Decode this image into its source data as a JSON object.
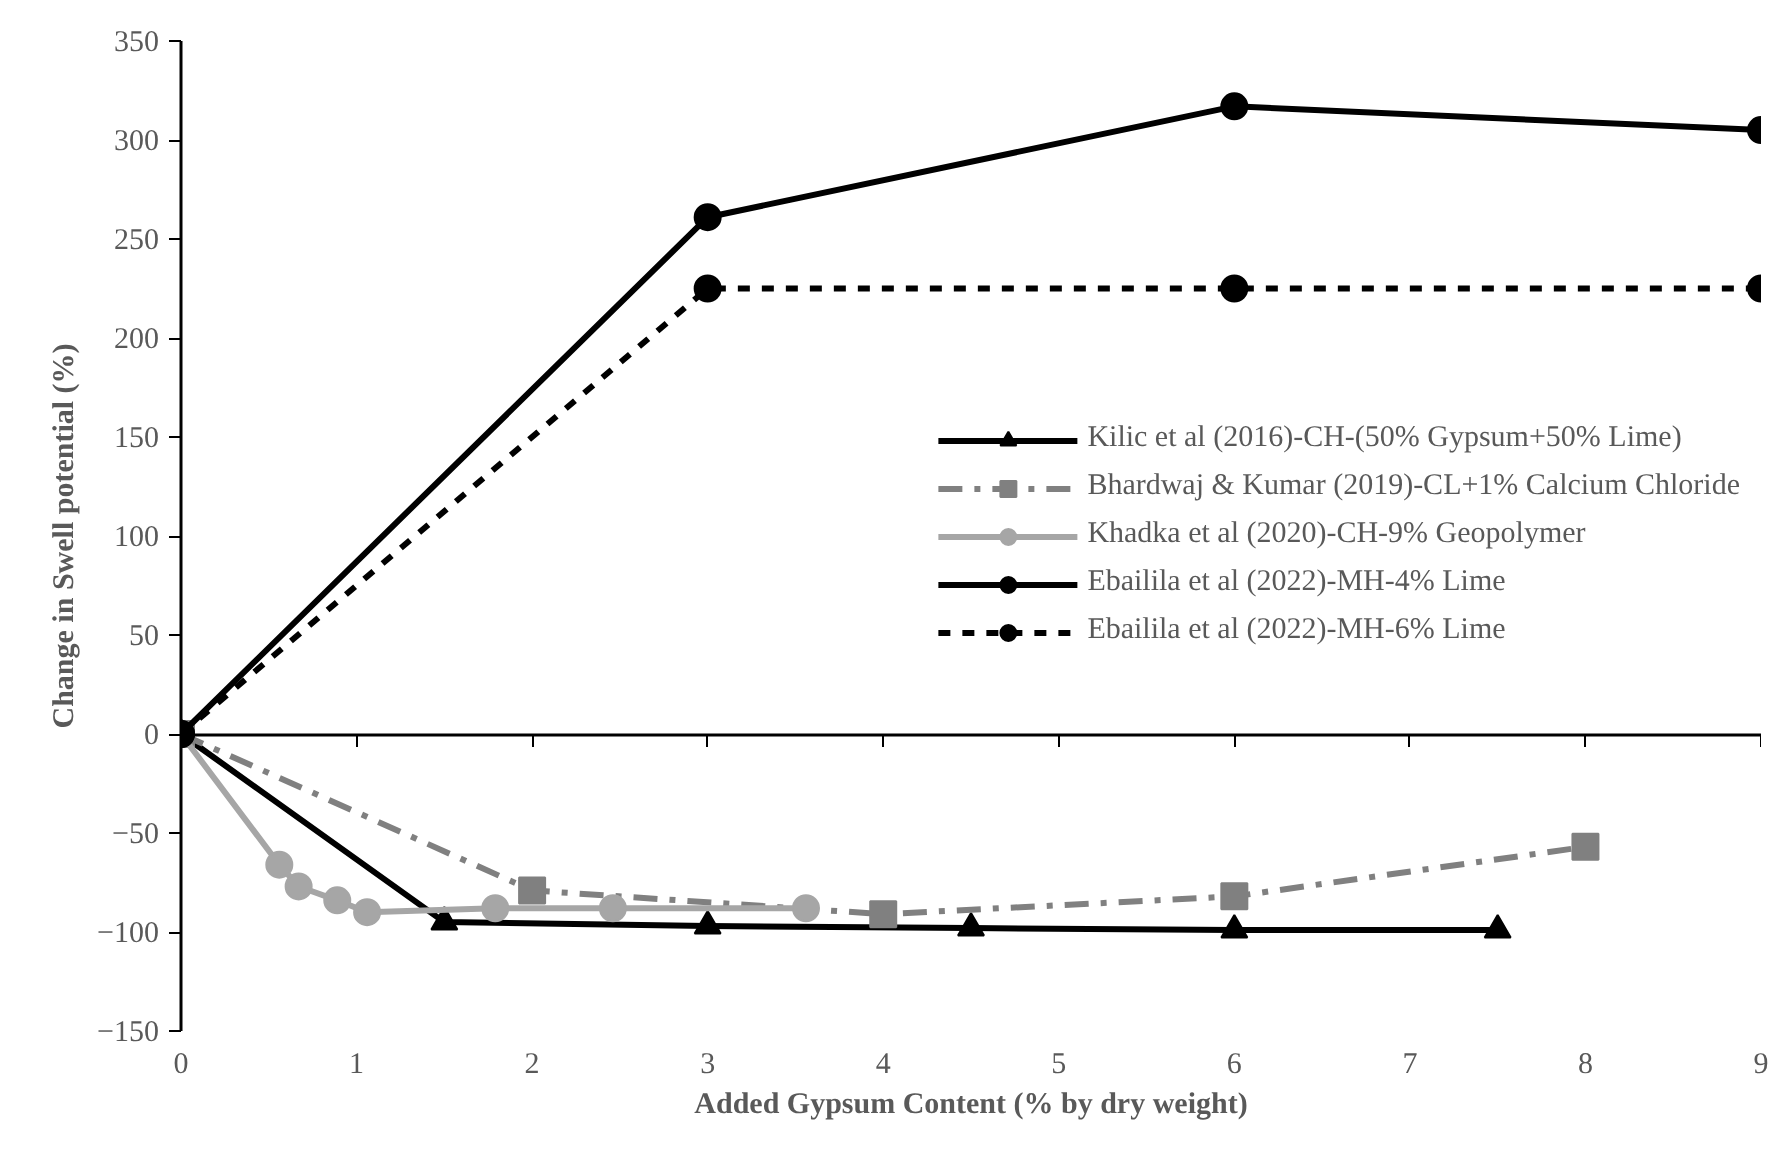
{
  "chart_data": {
    "type": "line",
    "xlabel": "Added Gypsum Content (% by dry weight)",
    "ylabel": "Change in Swell potential (%)",
    "xlim": [
      0,
      9
    ],
    "xticks": [
      0,
      1,
      2,
      3,
      4,
      5,
      6,
      7,
      8,
      9
    ],
    "ylim": [
      -150,
      350
    ],
    "yticks": [
      -150,
      -100,
      -50,
      0,
      50,
      100,
      150,
      200,
      250,
      300,
      350
    ],
    "legend": "right",
    "series": [
      {
        "name": "Kilic et al (2016)-CH-(50% Gypsum+50% Lime)",
        "color": "#000000",
        "marker": "triangle",
        "line_style": "solid",
        "x": [
          0,
          1.5,
          3,
          4.5,
          6,
          7.5
        ],
        "values": [
          0,
          -95,
          -97,
          -98,
          -99,
          -99
        ]
      },
      {
        "name": "Bhardwaj & Kumar (2019)-CL+1% Calcium Chloride",
        "color": "#808080",
        "marker": "square",
        "line_style": "dashdot",
        "x": [
          0,
          2,
          4,
          6,
          8
        ],
        "values": [
          0,
          -79,
          -91,
          -82,
          -57
        ]
      },
      {
        "name": "Khadka et al (2020)-CH-9% Geopolymer",
        "color": "#a6a6a6",
        "marker": "circle",
        "line_style": "solid",
        "x": [
          0,
          0.56,
          0.67,
          0.89,
          1.06,
          1.79,
          2.46,
          3.56
        ],
        "values": [
          0,
          -66,
          -77,
          -84,
          -90,
          -88,
          -88,
          -88
        ]
      },
      {
        "name": "Ebailila et al (2022)-MH-4% Lime",
        "color": "#000000",
        "marker": "circle",
        "line_style": "solid",
        "x": [
          0,
          3,
          6,
          9
        ],
        "values": [
          0,
          261,
          317,
          305
        ]
      },
      {
        "name": "Ebailila et al (2022)-MH-6% Lime",
        "color": "#000000",
        "marker": "circle",
        "line_style": "dashed",
        "x": [
          0,
          3,
          6,
          9
        ],
        "values": [
          0,
          225,
          225,
          225
        ]
      }
    ]
  }
}
